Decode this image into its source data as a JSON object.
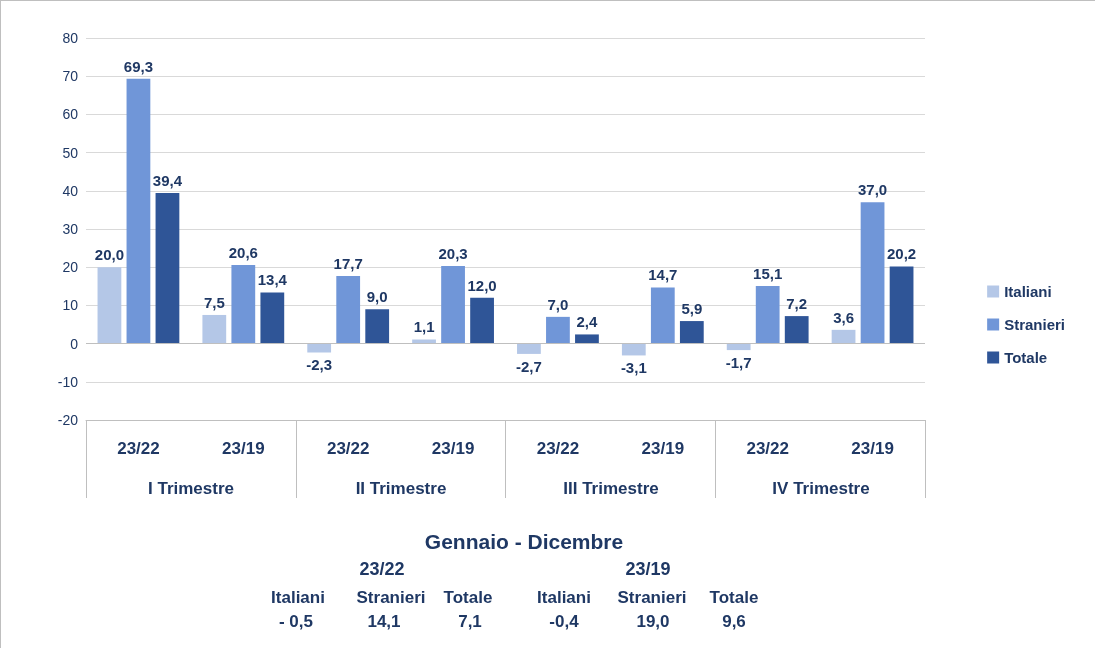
{
  "chart_data": {
    "type": "bar",
    "categories": [
      "23/22",
      "23/19",
      "23/22",
      "23/19",
      "23/22",
      "23/19",
      "23/22",
      "23/19"
    ],
    "series": [
      {
        "name": "Italiani",
        "color": "#b4c7e7",
        "values": [
          20.0,
          7.5,
          -2.3,
          1.1,
          -2.7,
          -3.1,
          -1.7,
          3.6
        ],
        "value_labels": [
          "20,0",
          "7,5",
          "-2,3",
          "1,1",
          "-2,7",
          "-3,1",
          "-1,7",
          "3,6"
        ]
      },
      {
        "name": "Stranieri",
        "color": "#7096d8",
        "values": [
          69.3,
          20.6,
          17.7,
          20.3,
          7.0,
          14.7,
          15.1,
          37.0
        ],
        "value_labels": [
          "69,3",
          "20,6",
          "17,7",
          "20,3",
          "7,0",
          "14,7",
          "15,1",
          "37,0"
        ]
      },
      {
        "name": "Totale",
        "color": "#2f5597",
        "values": [
          39.4,
          13.4,
          9.0,
          12.0,
          2.4,
          5.9,
          7.2,
          20.2
        ],
        "value_labels": [
          "39,4",
          "13,4",
          "9,0",
          "12,0",
          "2,4",
          "5,9",
          "7,2",
          "20,2"
        ]
      }
    ],
    "ylim": [
      -20,
      80
    ],
    "yticks": [
      -20,
      -10,
      0,
      10,
      20,
      30,
      40,
      50,
      60,
      70,
      80
    ],
    "grid": "y",
    "legend": "right",
    "annotations": [
      "I Trimestre",
      "II Trimestre",
      "III Trimestre",
      "IV Trimestre",
      "Gennaio - Dicembre",
      "23/22",
      "23/19",
      "Italiani",
      "Stranieri",
      "Totale",
      "- 0,5",
      "14,1",
      "7,1",
      "Italiani",
      "Stranieri",
      "Totale",
      "-0,4",
      "19,0",
      "9,6"
    ]
  }
}
